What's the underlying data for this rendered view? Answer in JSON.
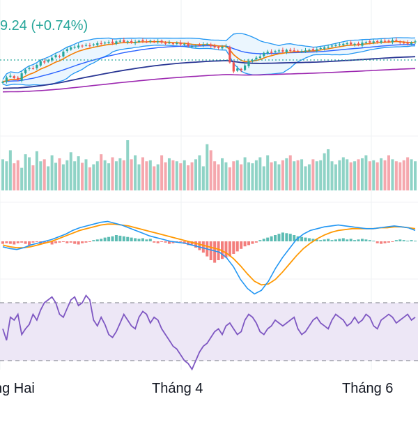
{
  "header": {
    "price_text": "9.24",
    "change_text": "(+0.74%)",
    "color": "#26a69a"
  },
  "x_axis": {
    "labels": [
      "ng Hai",
      "Tháng 4",
      "Tháng 6"
    ]
  },
  "colors": {
    "up": "#26a69a",
    "down": "#ef5350",
    "vol_up": "#8fd3c6",
    "vol_down": "#f5a7ad",
    "bb_band": "#2196f3",
    "bb_fill": "#e3f2fd",
    "ema_short": "#f57c00",
    "ma_mid": "#2962ff",
    "ma_long": "#283593",
    "ma_very_long": "#9c27b0",
    "macd_line": "#2196f3",
    "signal_line": "#ff9800",
    "rsi_line": "#7e57c2",
    "rsi_fill": "#ede7f6",
    "dotted_line": "#26a69a"
  },
  "chart_data": {
    "type": "candlestick",
    "panes": [
      "price",
      "volume",
      "macd",
      "rsi"
    ],
    "x_ticks": [
      "ng Hai",
      "Tháng 4",
      "Tháng 6"
    ],
    "price_axis_visible": false,
    "rsi_levels": [
      70,
      30
    ],
    "overlays": [
      "bollinger_bands",
      "ema_short",
      "ma_mid",
      "ma_long",
      "ma_very_long"
    ],
    "series": [
      {
        "name": "price",
        "values": [
          38,
          45,
          48,
          44,
          41,
          52,
          58,
          61,
          60,
          66,
          72,
          70,
          74,
          78,
          82,
          80,
          88,
          92,
          95,
          96,
          98,
          97,
          99,
          98,
          100,
          102,
          101,
          103,
          104,
          102,
          105,
          106,
          104,
          105,
          103,
          104,
          106,
          105,
          104,
          106,
          104,
          105,
          103,
          102,
          103,
          101,
          102,
          100,
          101,
          98,
          97,
          98,
          99,
          100,
          101,
          97,
          95,
          94,
          96,
          97,
          70,
          55,
          60,
          57,
          65,
          72,
          74,
          78,
          80,
          86,
          88,
          86,
          89,
          90,
          88,
          91,
          89,
          90,
          88,
          89,
          90,
          91,
          90,
          92,
          94,
          95,
          96,
          98,
          99,
          100,
          101,
          102,
          100,
          101,
          99,
          103,
          104,
          103,
          105,
          104,
          106,
          105,
          104,
          107,
          106,
          103,
          102,
          101,
          103,
          105
        ]
      },
      {
        "name": "volume",
        "values": [
          62,
          58,
          80,
          54,
          60,
          45,
          72,
          66,
          50,
          78,
          58,
          62,
          48,
          70,
          55,
          64,
          52,
          60,
          76,
          58,
          68,
          55,
          62,
          46,
          52,
          58,
          72,
          60,
          54,
          66,
          58,
          64,
          60,
          100,
          62,
          70,
          52,
          66,
          58,
          60,
          48,
          52,
          70,
          56,
          64,
          60,
          58,
          54,
          60,
          50,
          56,
          62,
          70,
          48,
          92,
          80,
          58,
          52,
          64,
          56,
          46,
          58,
          60,
          52,
          66,
          56,
          54,
          60,
          66,
          48,
          70,
          56,
          58,
          52,
          60,
          64,
          70,
          58,
          60,
          62,
          48,
          52,
          62,
          58,
          60,
          74,
          82,
          58,
          52,
          60,
          66,
          62,
          56,
          58,
          62,
          64,
          70,
          58,
          60,
          56,
          64,
          60,
          70,
          62,
          58,
          56,
          60,
          66,
          62,
          58
        ]
      },
      {
        "name": "macd_hist",
        "values": [
          -4,
          -3,
          -4,
          -5,
          -3,
          -2,
          -4,
          -6,
          -2,
          -1,
          -4,
          -3,
          -2,
          -5,
          -3,
          -2,
          -1,
          -3,
          -2,
          -4,
          -5,
          -3,
          -2,
          -1,
          2,
          3,
          4,
          6,
          7,
          8,
          10,
          9,
          8,
          7,
          6,
          5,
          4,
          5,
          3,
          4,
          -2,
          -3,
          -1,
          -2,
          -4,
          -3,
          -2,
          -1,
          -4,
          -6,
          -5,
          -10,
          -14,
          -18,
          -24,
          -30,
          -34,
          -30,
          -28,
          -26,
          -24,
          -20,
          -16,
          -12,
          -8,
          -6,
          -4,
          -2,
          2,
          4,
          6,
          8,
          10,
          12,
          14,
          13,
          12,
          10,
          8,
          7,
          6,
          5,
          4,
          3,
          2,
          3,
          4,
          2,
          3,
          4,
          5,
          3,
          4,
          2,
          3,
          4,
          3,
          2,
          1,
          -3,
          -4,
          -3,
          -2,
          -1,
          2,
          3,
          2,
          1,
          2,
          1
        ]
      },
      {
        "name": "macd",
        "values": [
          -6,
          -8,
          -9,
          -7,
          -4,
          -2,
          0,
          2,
          5,
          8,
          12,
          15,
          17,
          19,
          21,
          22,
          20,
          18,
          15,
          12,
          9,
          6,
          4,
          2,
          0,
          -1,
          -2,
          -4,
          -6,
          -8,
          -10,
          -12,
          -18,
          -28,
          -42,
          -52,
          -58,
          -54,
          -44,
          -30,
          -18,
          -8,
          2,
          8,
          12,
          14,
          16,
          17,
          18,
          17,
          16,
          15,
          14,
          14,
          15,
          16,
          17,
          16,
          15,
          12
        ]
      },
      {
        "name": "signal",
        "values": [
          -4,
          -6,
          -7,
          -7,
          -6,
          -4,
          -2,
          0,
          3,
          6,
          9,
          12,
          14,
          16,
          18,
          19,
          19,
          18,
          17,
          15,
          13,
          11,
          9,
          7,
          5,
          3,
          1,
          -1,
          -3,
          -5,
          -7,
          -9,
          -13,
          -19,
          -27,
          -36,
          -44,
          -48,
          -47,
          -42,
          -34,
          -25,
          -16,
          -8,
          -2,
          3,
          7,
          10,
          12,
          13,
          14,
          14,
          14,
          14,
          15,
          15,
          16,
          16,
          15,
          14
        ]
      },
      {
        "name": "rsi",
        "values": [
          52,
          44,
          60,
          58,
          62,
          48,
          52,
          55,
          62,
          58,
          65,
          70,
          72,
          74,
          70,
          62,
          60,
          66,
          72,
          74,
          68,
          70,
          75,
          72,
          58,
          54,
          60,
          55,
          48,
          46,
          50,
          56,
          62,
          58,
          54,
          52,
          60,
          64,
          62,
          56,
          60,
          58,
          52,
          48,
          44,
          40,
          38,
          34,
          30,
          28,
          24,
          30,
          36,
          40,
          42,
          46,
          50,
          52,
          48,
          54,
          56,
          52,
          48,
          50,
          58,
          62,
          60,
          56,
          50,
          48,
          52,
          54,
          58,
          56,
          54,
          56,
          58,
          60,
          52,
          48,
          50,
          54,
          58,
          60,
          56,
          54,
          52,
          58,
          62,
          60,
          58,
          54,
          56,
          60,
          56,
          58,
          62,
          60,
          54,
          52,
          58,
          60,
          62,
          60,
          56,
          58,
          60,
          62,
          58,
          60
        ]
      }
    ]
  }
}
